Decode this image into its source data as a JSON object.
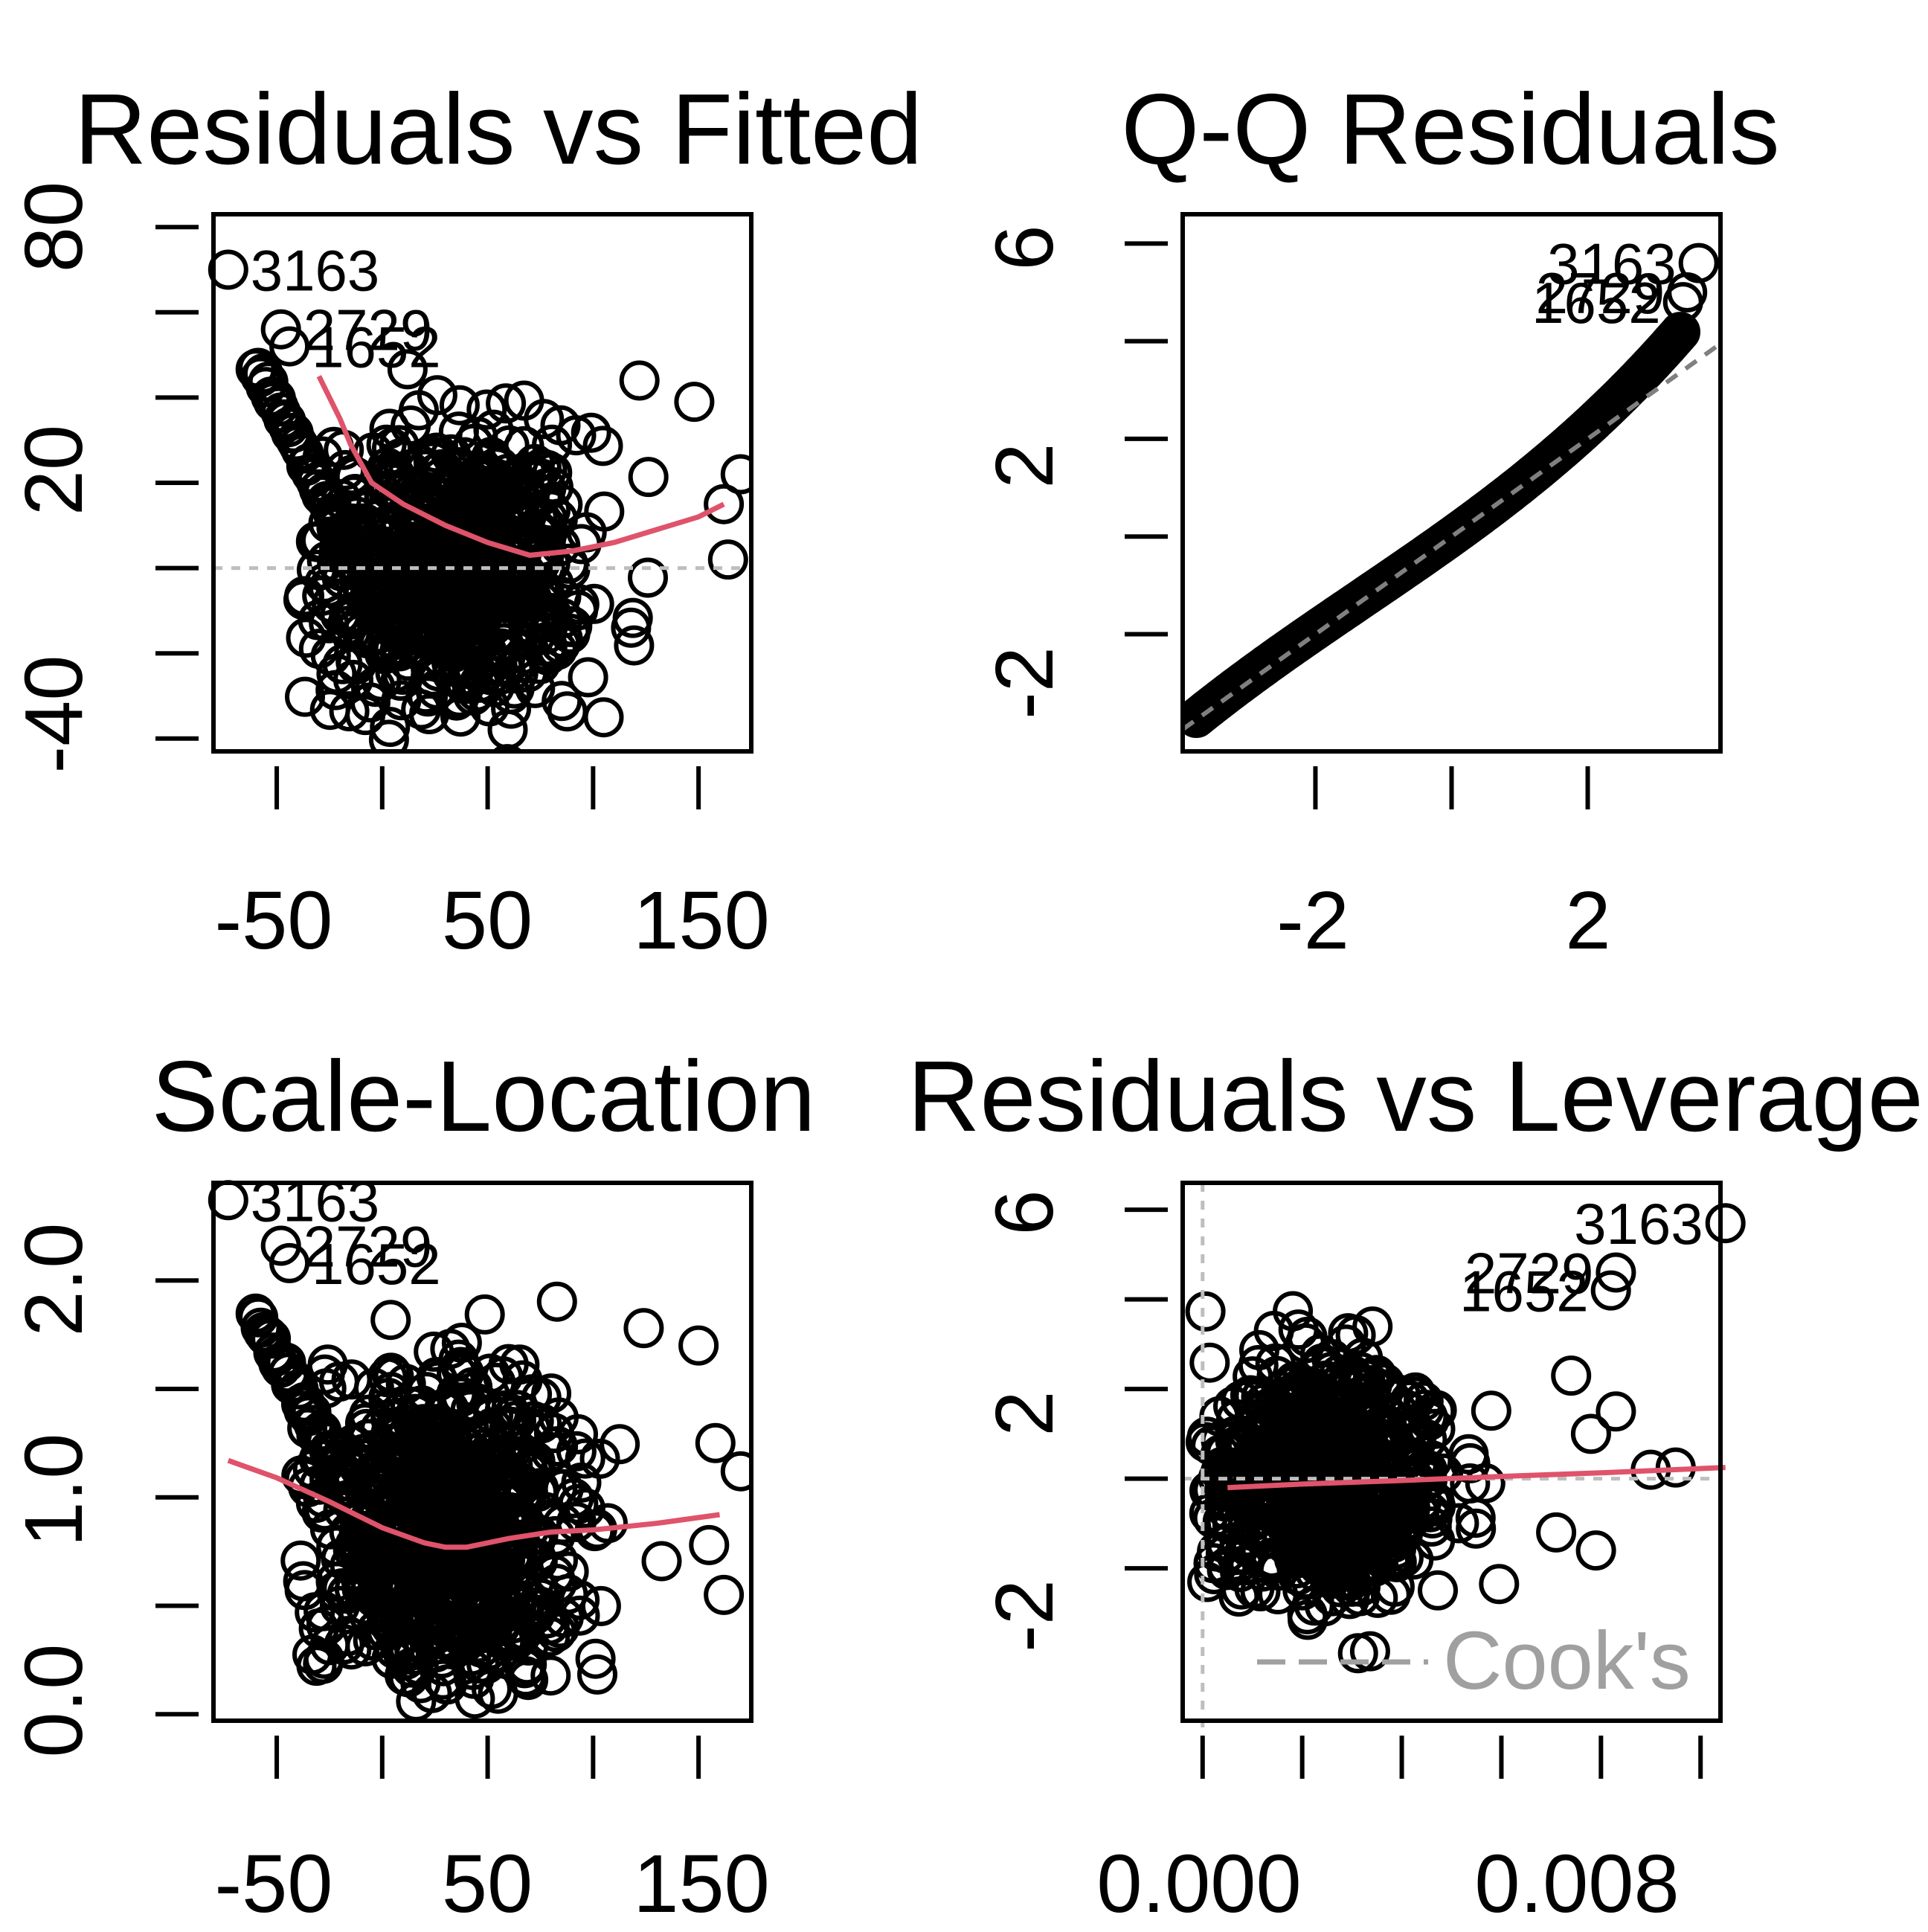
{
  "colors": {
    "points": "#000000",
    "smooth": "#DF536B",
    "reference": "#BEBEBE",
    "qqline": "#808080",
    "cooks": "#A0A0A0"
  },
  "panels": [
    {
      "title": "Residuals vs Fitted",
      "xticks": [
        "-50",
        "50",
        "150"
      ],
      "yticks": [
        "-40",
        "20",
        "80"
      ]
    },
    {
      "title": "Q-Q Residuals",
      "xticks": [
        "-2",
        "2"
      ],
      "yticks": [
        "-2",
        "2",
        "6"
      ]
    },
    {
      "title": "Scale-Location",
      "xticks": [
        "-50",
        "50",
        "150"
      ],
      "yticks": [
        "0.0",
        "1.0",
        "2.0"
      ]
    },
    {
      "title": "Residuals vs Leverage",
      "xticks": [
        "0.000",
        "0.008"
      ],
      "yticks": [
        "-2",
        "2",
        "6"
      ],
      "legend": "Cook's"
    }
  ],
  "chart_data": [
    {
      "type": "scatter",
      "title": "Residuals vs Fitted",
      "xlim": [
        -80,
        175
      ],
      "ylim": [
        -43,
        83
      ],
      "x_ticks": [
        -50,
        0,
        50,
        100,
        150
      ],
      "y_ticks": [
        -40,
        -20,
        0,
        20,
        40,
        60,
        80
      ],
      "x_tick_labels": [
        "-50",
        "50",
        "150"
      ],
      "y_tick_labels": [
        "-40",
        "20",
        "80"
      ],
      "reference_line_y": 0,
      "labeled_points": [
        {
          "label": "3163",
          "x": -73,
          "y": 70
        },
        {
          "label": "2729",
          "x": -48,
          "y": 56
        },
        {
          "label": "1652",
          "x": -44,
          "y": 52
        }
      ],
      "series": [
        {
          "values": [
            [
              -30,
              45
            ],
            [
              -20,
              35
            ],
            [
              -15,
              29
            ],
            [
              -5,
              20
            ],
            [
              10,
              15
            ],
            [
              30,
              10
            ],
            [
              50,
              6
            ],
            [
              70,
              3
            ],
            [
              90,
              4
            ],
            [
              110,
              6
            ],
            [
              130,
              9
            ],
            [
              150,
              12
            ],
            [
              162,
              15
            ]
          ]
        }
      ],
      "grid": false
    },
    {
      "type": "scatter",
      "title": "Q-Q Residuals",
      "xlim": [
        -3.95,
        3.95
      ],
      "ylim": [
        -4.4,
        6.6
      ],
      "x_ticks": [
        -4,
        -2,
        0,
        2,
        4
      ],
      "y_ticks": [
        -2,
        0,
        2,
        4,
        6
      ],
      "x_tick_labels": [
        "-2",
        "2"
      ],
      "y_tick_labels": [
        "-2",
        "2",
        "6"
      ],
      "labeled_points": [
        {
          "label": "3163",
          "x": 3.63,
          "y": 5.6
        },
        {
          "label": "2729",
          "x": 3.46,
          "y": 5.0
        },
        {
          "label": "1652",
          "x": 3.4,
          "y": 4.8
        }
      ],
      "reference_line": {
        "slope": 1.0,
        "intercept": 0.0
      },
      "grid": false
    },
    {
      "type": "scatter",
      "title": "Scale-Location",
      "xlim": [
        -80,
        175
      ],
      "ylim": [
        -0.03,
        2.45
      ],
      "x_ticks": [
        -50,
        0,
        50,
        100,
        150
      ],
      "y_ticks": [
        0.0,
        0.5,
        1.0,
        1.5,
        2.0
      ],
      "x_tick_labels": [
        "-50",
        "50",
        "150"
      ],
      "y_tick_labels": [
        "0.0",
        "1.0",
        "2.0"
      ],
      "labeled_points": [
        {
          "label": "3163",
          "x": -73,
          "y": 2.37
        },
        {
          "label": "2729",
          "x": -48,
          "y": 2.16
        },
        {
          "label": "1652",
          "x": -44,
          "y": 2.08
        }
      ],
      "series": [
        {
          "values": [
            [
              -73,
              1.17
            ],
            [
              -50,
              1.09
            ],
            [
              -25,
              0.98
            ],
            [
              0,
              0.86
            ],
            [
              20,
              0.79
            ],
            [
              30,
              0.77
            ],
            [
              40,
              0.77
            ],
            [
              60,
              0.81
            ],
            [
              80,
              0.84
            ],
            [
              100,
              0.85
            ],
            [
              130,
              0.88
            ],
            [
              160,
              0.92
            ]
          ]
        }
      ],
      "grid": false
    },
    {
      "type": "scatter",
      "title": "Residuals vs Leverage",
      "xlim": [
        -0.0004,
        0.0104
      ],
      "ylim": [
        -5.4,
        6.6
      ],
      "x_ticks": [
        0.0,
        0.002,
        0.004,
        0.006,
        0.008,
        0.01
      ],
      "y_ticks": [
        -2,
        0,
        2,
        4,
        6
      ],
      "x_tick_labels": [
        "0.000",
        "0.008"
      ],
      "y_tick_labels": [
        "-2",
        "2",
        "6"
      ],
      "reference_line_y": 0,
      "reference_line_x": 0,
      "labeled_points": [
        {
          "label": "3163",
          "x": 0.0105,
          "y": 5.7
        },
        {
          "label": "2729",
          "x": 0.0083,
          "y": 4.6
        },
        {
          "label": "1652",
          "x": 0.0082,
          "y": 4.2
        }
      ],
      "series": [
        {
          "values": [
            [
              0.0005,
              -0.2
            ],
            [
              0.002,
              -0.12
            ],
            [
              0.004,
              -0.04
            ],
            [
              0.006,
              0.05
            ],
            [
              0.008,
              0.13
            ],
            [
              0.0105,
              0.25
            ]
          ]
        }
      ],
      "legend": "Cook's",
      "grid": false
    }
  ]
}
